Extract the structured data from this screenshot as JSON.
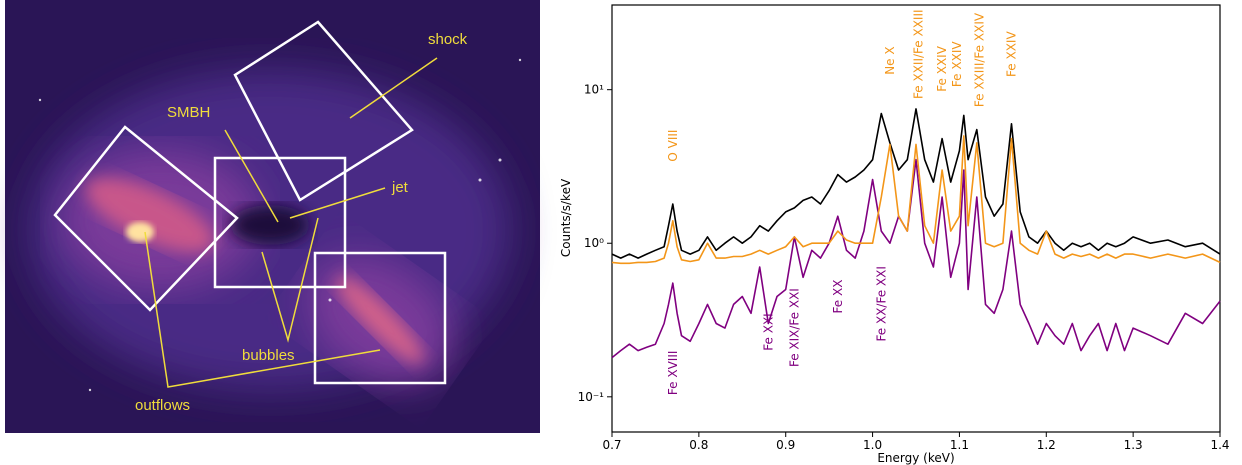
{
  "image": {
    "labels": [
      "shock",
      "SMBH",
      "jet",
      "bubbles",
      "outflows"
    ]
  },
  "chart_data": {
    "type": "line",
    "x_label": "Energy (keV)",
    "y_label": "Counts/s/keV",
    "yscale": "log",
    "xlim": [
      0.7,
      1.4
    ],
    "ylim": [
      0.059,
      35.6
    ],
    "xticks": [
      0.7,
      0.8,
      0.9,
      {
        "value": 1,
        "label": "1.0"
      },
      1.1,
      1.2,
      1.3,
      1.4
    ],
    "yticks": [
      {
        "value": 0.1,
        "label": "10⁻¹"
      },
      {
        "value": 1,
        "label": "10⁰"
      },
      {
        "value": 10,
        "label": "10¹"
      }
    ],
    "x": [
      0.7,
      0.71,
      0.72,
      0.73,
      0.74,
      0.75,
      0.76,
      0.765,
      0.77,
      0.775,
      0.78,
      0.79,
      0.8,
      0.81,
      0.82,
      0.83,
      0.84,
      0.85,
      0.86,
      0.87,
      0.88,
      0.89,
      0.9,
      0.91,
      0.92,
      0.93,
      0.94,
      0.95,
      0.96,
      0.97,
      0.98,
      0.99,
      1.0,
      1.01,
      1.02,
      1.03,
      1.04,
      1.05,
      1.06,
      1.07,
      1.08,
      1.09,
      1.1,
      1.105,
      1.11,
      1.12,
      1.13,
      1.14,
      1.15,
      1.16,
      1.17,
      1.18,
      1.19,
      1.2,
      1.21,
      1.22,
      1.23,
      1.24,
      1.25,
      1.26,
      1.27,
      1.28,
      1.29,
      1.3,
      1.32,
      1.34,
      1.36,
      1.38,
      1.4
    ],
    "series": [
      {
        "color": "#800080",
        "values": [
          0.18,
          0.2,
          0.22,
          0.2,
          0.21,
          0.22,
          0.3,
          0.4,
          0.55,
          0.35,
          0.25,
          0.23,
          0.3,
          0.4,
          0.3,
          0.28,
          0.4,
          0.45,
          0.35,
          0.7,
          0.3,
          0.45,
          0.5,
          1.1,
          0.6,
          0.9,
          0.8,
          1.0,
          1.5,
          0.9,
          0.8,
          1.2,
          2.6,
          1.2,
          1.0,
          1.5,
          1.2,
          3.5,
          1.0,
          0.7,
          2.0,
          0.6,
          1.0,
          3.0,
          0.5,
          2.0,
          0.4,
          0.35,
          0.5,
          1.2,
          0.4,
          0.3,
          0.22,
          0.3,
          0.25,
          0.22,
          0.3,
          0.2,
          0.25,
          0.3,
          0.2,
          0.3,
          0.2,
          0.28,
          0.25,
          0.22,
          0.35,
          0.3,
          0.42
        ]
      },
      {
        "color": "#000000",
        "values": [
          0.85,
          0.8,
          0.85,
          0.8,
          0.85,
          0.9,
          0.95,
          1.3,
          1.8,
          1.2,
          0.9,
          0.85,
          0.9,
          1.1,
          0.9,
          1.0,
          1.1,
          1.0,
          1.1,
          1.3,
          1.2,
          1.4,
          1.6,
          1.7,
          1.9,
          2.0,
          1.8,
          2.2,
          2.8,
          2.5,
          2.7,
          3.0,
          3.5,
          7.0,
          4.5,
          3.0,
          3.5,
          7.5,
          3.5,
          2.5,
          4.8,
          2.5,
          4.0,
          6.8,
          3.5,
          5.5,
          2.0,
          1.5,
          1.8,
          6.0,
          1.6,
          1.1,
          1.0,
          1.2,
          1.0,
          0.9,
          1.0,
          0.95,
          1.0,
          0.9,
          1.0,
          0.95,
          1.0,
          1.1,
          1.0,
          1.05,
          0.95,
          1.0,
          0.85
        ]
      },
      {
        "color": "#f39619",
        "values": [
          0.75,
          0.74,
          0.74,
          0.75,
          0.75,
          0.76,
          0.8,
          1.0,
          1.4,
          0.95,
          0.78,
          0.76,
          0.78,
          1.0,
          0.8,
          0.8,
          0.82,
          0.82,
          0.85,
          0.9,
          0.85,
          0.9,
          0.95,
          1.1,
          0.95,
          1.0,
          1.0,
          1.0,
          1.2,
          1.05,
          1.0,
          1.0,
          1.0,
          2.0,
          4.4,
          1.5,
          1.2,
          4.4,
          1.3,
          1.0,
          3.0,
          1.2,
          1.5,
          5.0,
          1.3,
          4.5,
          1.0,
          0.95,
          1.0,
          4.8,
          1.0,
          0.9,
          0.85,
          1.2,
          0.85,
          0.8,
          0.85,
          0.82,
          0.85,
          0.8,
          0.85,
          0.8,
          0.85,
          0.85,
          0.8,
          0.85,
          0.8,
          0.85,
          0.75
        ]
      }
    ],
    "upper_labels": {
      "color": "#f39619",
      "items": [
        {
          "text": "O VIII",
          "x": 0.77,
          "y": 3.4
        },
        {
          "text": "Ne X",
          "x": 1.02,
          "y": 12.5
        },
        {
          "text": "Fe XXII/Fe XXIII",
          "x": 1.053,
          "y": 8.7
        },
        {
          "text": "Fe XXIV",
          "x": 1.08,
          "y": 9.7
        },
        {
          "text": "Fe XXIV",
          "x": 1.097,
          "y": 10.4
        },
        {
          "text": "Fe XXIII/Fe XXIV",
          "x": 1.123,
          "y": 7.7
        },
        {
          "text": "Fe XXIV",
          "x": 1.16,
          "y": 12.1
        }
      ]
    },
    "lower_labels": {
      "color": "#800080",
      "items": [
        {
          "text": "Fe XVIII",
          "x": 0.77,
          "y": 0.2
        },
        {
          "text": "Fe XXI",
          "x": 0.88,
          "y": 0.35
        },
        {
          "text": "Fe XIX/Fe XXI",
          "x": 0.91,
          "y": 0.51
        },
        {
          "text": "Fe XX",
          "x": 0.96,
          "y": 0.58
        },
        {
          "text": "Fe XX/Fe XXI",
          "x": 1.01,
          "y": 0.71
        }
      ]
    }
  }
}
